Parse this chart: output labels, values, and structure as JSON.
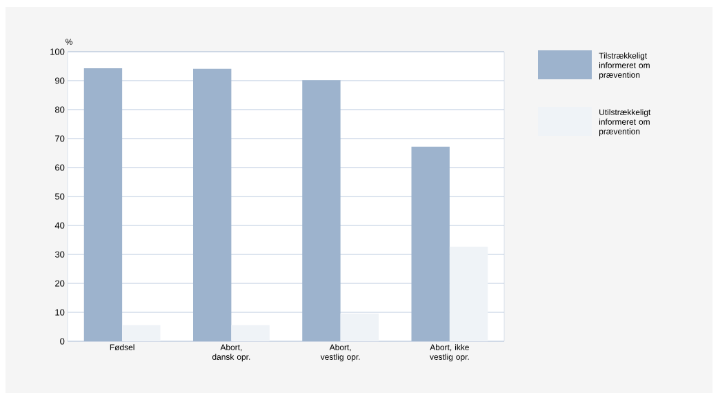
{
  "chart_data": {
    "type": "bar",
    "ylabel": "%",
    "categories": [
      "Fødsel",
      "Abort, dansk opr.",
      "Abort, vestlig opr.",
      "Abort, ikke vestlig opr."
    ],
    "series": [
      {
        "name": "Tilstrækkeligt informeret om prævention",
        "color": "#9db3cd",
        "values": [
          94.3,
          94.1,
          90.2,
          67.2
        ]
      },
      {
        "name": "Utilstrækkeligt informeret om prævention",
        "color": "#eff3f7",
        "values": [
          5.6,
          5.6,
          9.6,
          32.7
        ]
      }
    ],
    "ylim": [
      0,
      100
    ],
    "yticks": [
      0,
      10,
      20,
      30,
      40,
      50,
      60,
      70,
      80,
      90,
      100
    ],
    "grid": "y",
    "legend": "top right"
  }
}
